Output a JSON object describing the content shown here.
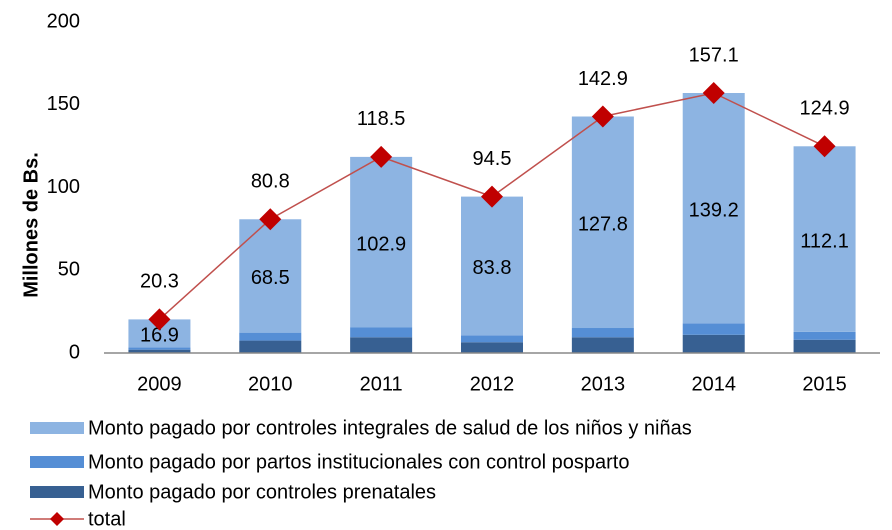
{
  "chart_data": {
    "type": "bar",
    "stacked": true,
    "y_label": "Millones de Bs.",
    "categories": [
      "2009",
      "2010",
      "2011",
      "2012",
      "2013",
      "2014",
      "2015"
    ],
    "series": [
      {
        "name": "Monto pagado por controles integrales de salud de los niños y niñas",
        "color": "#8db4e2",
        "values": [
          16.9,
          68.5,
          102.9,
          83.8,
          127.8,
          139.2,
          112.1
        ]
      },
      {
        "name": "Monto pagado por partos institucionales con control posparto",
        "color": "#558ed5",
        "values": [
          1.4,
          4.8,
          6.1,
          4.2,
          5.6,
          6.9,
          4.8
        ]
      },
      {
        "name": "Monto pagado por controles prenatales",
        "color": "#376092",
        "values": [
          2.0,
          7.5,
          9.5,
          6.5,
          9.5,
          11.0,
          8.0
        ]
      },
      {
        "name": "total",
        "type": "line",
        "color": "#c0504d",
        "marker_color": "#c00000",
        "values": [
          20.3,
          80.8,
          118.5,
          94.5,
          142.9,
          157.1,
          124.9
        ]
      }
    ],
    "ylim": [
      0,
      200
    ],
    "yticks": [
      0,
      50,
      100,
      150,
      200
    ],
    "grid": false
  }
}
